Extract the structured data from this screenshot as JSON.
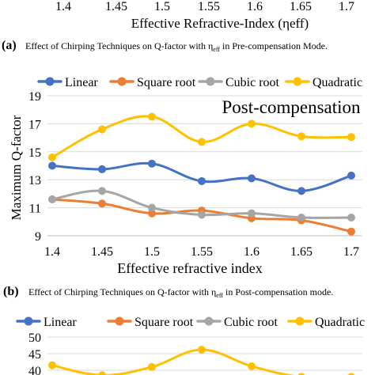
{
  "top": {
    "xtick_labels": [
      "1.4",
      "1.45",
      "1.5",
      "1.55",
      "1.6",
      "1.65",
      "1.7"
    ],
    "xlabel": "Effective Refractive-Index (ηeff)"
  },
  "caption_a": {
    "letter": "(a)",
    "text_before": "Effect of Chirping Techniques on Q-factor with η",
    "subscript": "eff",
    "text_after": " in Pre-compensation Mode."
  },
  "caption_b": {
    "letter": "(b)",
    "text_before": "Effect of Chirping Techniques on Q-factor with η",
    "subscript": "eff",
    "text_after": " in Post-compensation mode."
  },
  "colors": {
    "Linear": "#4472c4",
    "Square root": "#ed7d31",
    "Cubic root": "#a5a5a5",
    "Quadratic": "#ffc000",
    "grid": "#d9d9d9",
    "axis": "#bfbfbf"
  },
  "chart_data": [
    {
      "type": "line",
      "title": "Post-compensation",
      "xlabel": "Effective refractive index",
      "ylabel": "Maximum Q-factor",
      "x": [
        1.4,
        1.45,
        1.5,
        1.55,
        1.6,
        1.65,
        1.7
      ],
      "xtick_labels": [
        "1.4",
        "1.45",
        "1.5",
        "1.55",
        "1.6",
        "1.65",
        "1.7"
      ],
      "ylim": [
        9,
        19
      ],
      "yticks": [
        9,
        11,
        13,
        15,
        17,
        19
      ],
      "grid": "horizontal",
      "legend_position": "top",
      "series": [
        {
          "name": "Linear",
          "values": [
            14.0,
            13.75,
            14.15,
            12.9,
            13.1,
            12.2,
            13.3
          ]
        },
        {
          "name": "Square root",
          "values": [
            11.6,
            11.3,
            10.6,
            10.8,
            10.25,
            10.1,
            9.3
          ]
        },
        {
          "name": "Cubic root",
          "values": [
            11.6,
            12.2,
            11.0,
            10.5,
            10.6,
            10.3,
            10.3
          ]
        },
        {
          "name": "Quadratic",
          "values": [
            14.6,
            16.6,
            17.5,
            15.7,
            17.0,
            16.1,
            16.05
          ]
        }
      ]
    },
    {
      "type": "line",
      "ylim": [
        40,
        50
      ],
      "yticks": [
        40,
        45,
        50
      ],
      "legend_position": "top",
      "grid": "horizontal",
      "series": [
        {
          "name": "Linear",
          "values": []
        },
        {
          "name": "Square root",
          "values": []
        },
        {
          "name": "Cubic root",
          "values": []
        },
        {
          "name": "Quadratic",
          "values": [
            41.5,
            38.5,
            41.0,
            46.2,
            41.2,
            38.0,
            38.0
          ]
        }
      ]
    }
  ]
}
